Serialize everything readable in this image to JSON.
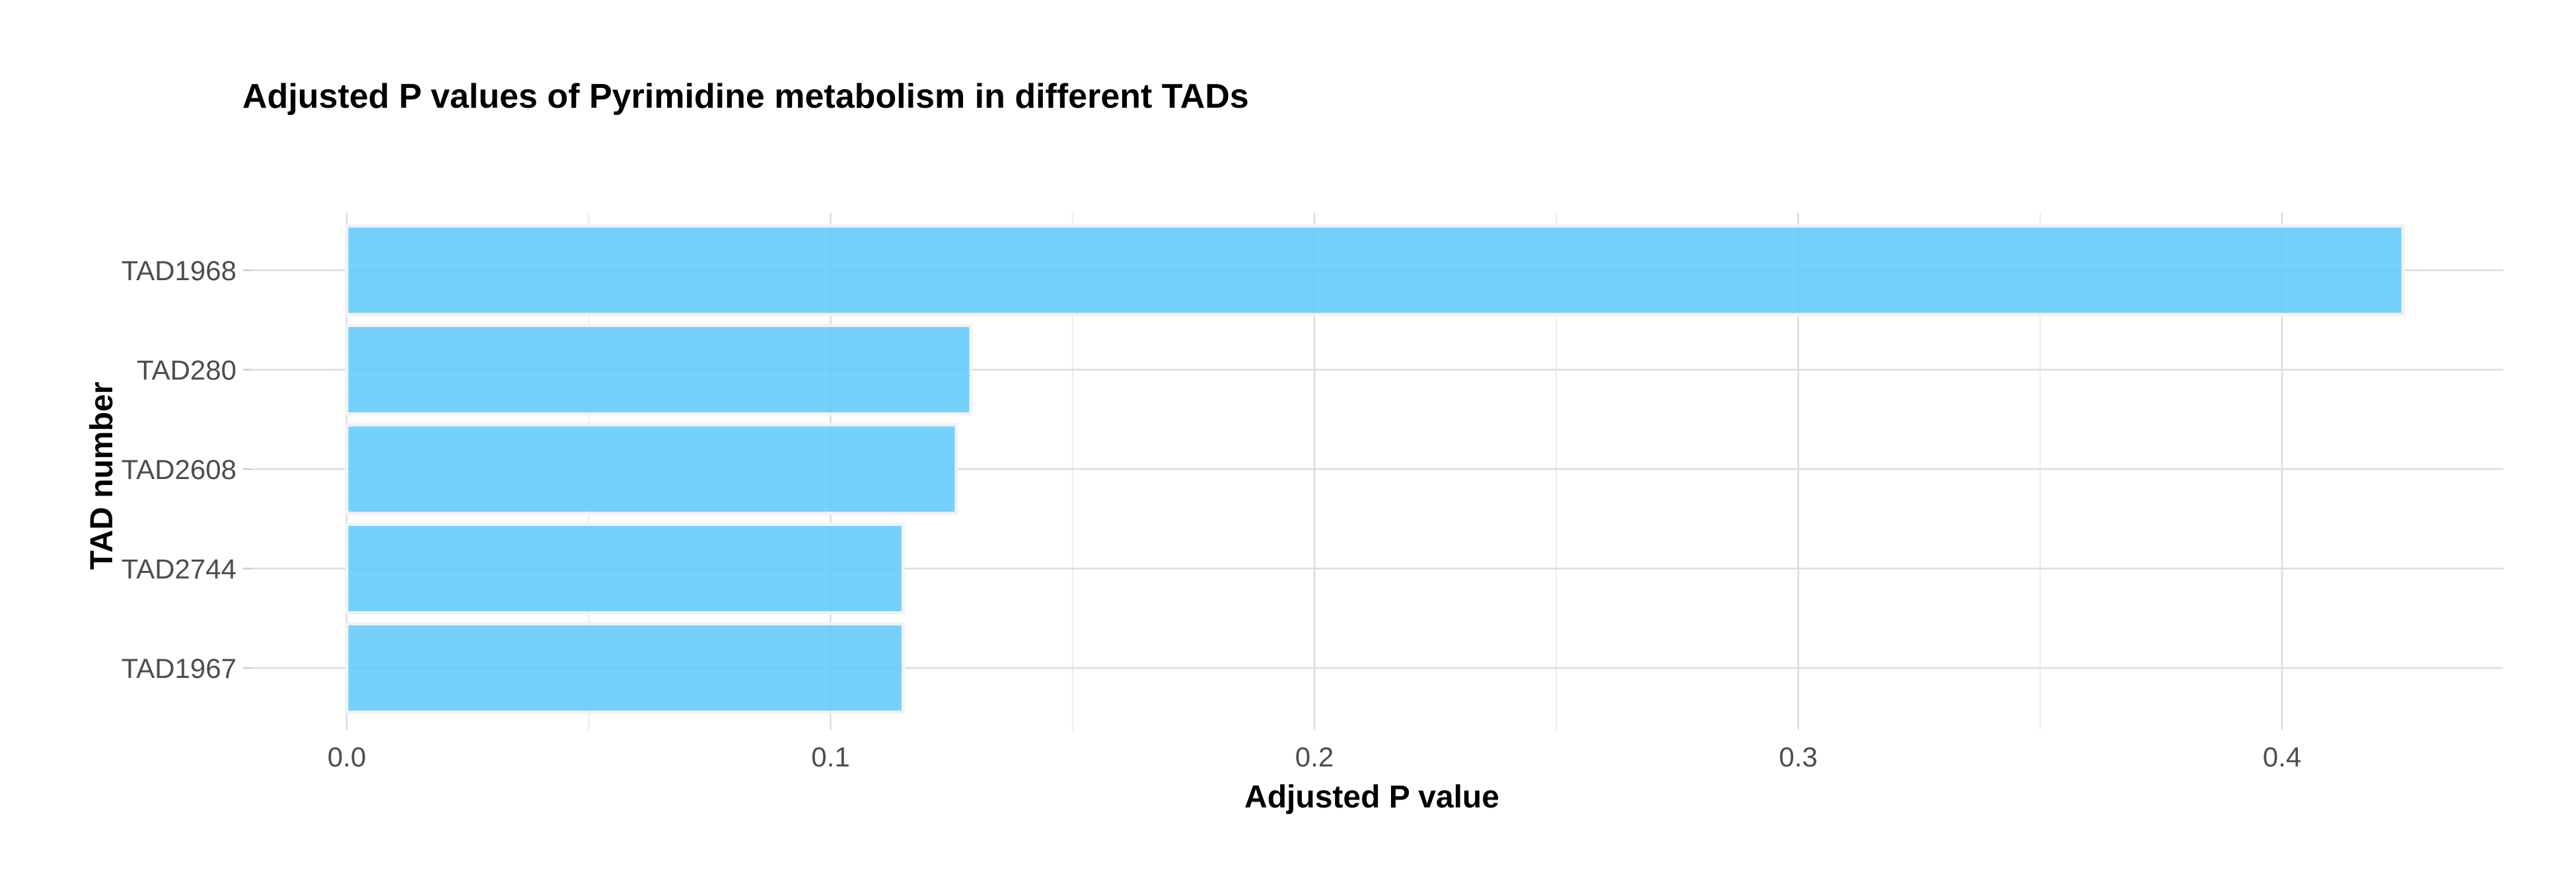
{
  "chart_data": {
    "type": "bar",
    "orientation": "horizontal",
    "title": "Adjusted P values of Pyrimidine metabolism in different TADs",
    "xlabel": "Adjusted P value",
    "ylabel": "TAD number",
    "categories": [
      "TAD1968",
      "TAD280",
      "TAD2608",
      "TAD2744",
      "TAD1967"
    ],
    "values": [
      0.425,
      0.129,
      0.126,
      0.115,
      0.115
    ],
    "xlim": [
      0,
      0.425
    ],
    "xticks": [
      0.0,
      0.1,
      0.2,
      0.3,
      0.4
    ],
    "xtick_labels": [
      "0.0",
      "0.1",
      "0.2",
      "0.3",
      "0.4"
    ],
    "grid": true,
    "legend": "none",
    "bar_color": "#5ec8fb",
    "bar_outline_color": "#f2f2f2"
  }
}
